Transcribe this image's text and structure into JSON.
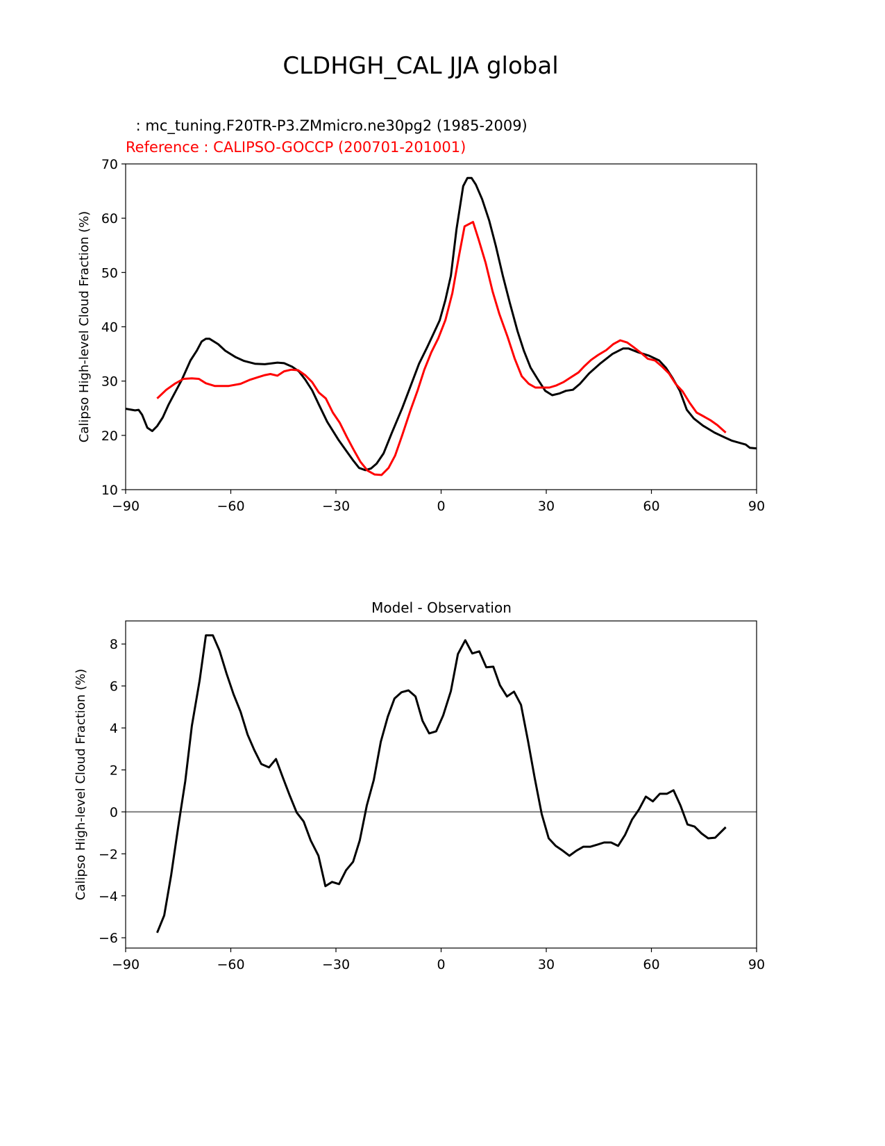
{
  "title": "CLDHGH_CAL JJA global",
  "colors": {
    "model": "#000000",
    "reference": "#ff0000",
    "zero_line": "#808080"
  },
  "chart_data": [
    {
      "type": "line",
      "test_label": " : mc_tuning.F20TR-P3.ZMmicro.ne30pg2 (1985-2009)",
      "ref_label": "Reference : CALIPSO-GOCCP (200701-201001)",
      "xlabel": "",
      "ylabel": "Calipso High-level Cloud Fraction (%)",
      "xlim": [
        -90,
        90
      ],
      "ylim": [
        10,
        70
      ],
      "xticks": [
        -90,
        -60,
        -30,
        0,
        30,
        60,
        90
      ],
      "xtick_labels": [
        "−90",
        "−60",
        "−30",
        "0",
        "30",
        "60",
        "90"
      ],
      "yticks": [
        10,
        20,
        30,
        40,
        50,
        60,
        70
      ],
      "ytick_labels": [
        "10",
        "20",
        "30",
        "40",
        "50",
        "60",
        "70"
      ],
      "series": [
        {
          "name": "model",
          "color": "#000000",
          "x": [
            -90,
            -87.3,
            -86.3,
            -85.3,
            -83.8,
            -82.4,
            -81,
            -79.4,
            -77.8,
            -76,
            -74,
            -71.5,
            -69.7,
            -68.3,
            -67.1,
            -66.1,
            -63.6,
            -61.6,
            -58.6,
            -56.2,
            -53.1,
            -50.3,
            -46.7,
            -44.8,
            -42.4,
            -40.6,
            -38.8,
            -36.8,
            -34.9,
            -32.5,
            -29.3,
            -26.9,
            -25,
            -23.4,
            -21.6,
            -20,
            -18.4,
            -16.4,
            -14.1,
            -11.1,
            -8.7,
            -6.3,
            -4,
            -2.2,
            -0.4,
            1.2,
            2.8,
            4.4,
            6.3,
            7.5,
            8.7,
            9.9,
            11.7,
            13.7,
            15.6,
            17.6,
            19.6,
            21.8,
            23.6,
            25.5,
            27.5,
            29.7,
            31.7,
            33.7,
            35.6,
            37.6,
            39.6,
            42.2,
            45.5,
            48.9,
            51.9,
            53.5,
            56.2,
            59.2,
            62.2,
            64.2,
            66.1,
            68.1,
            70.1,
            72.1,
            74.7,
            78,
            81,
            83,
            86.9,
            88.1,
            90
          ],
          "y": [
            24.9,
            24.6,
            24.7,
            23.8,
            21.4,
            20.8,
            21.7,
            23.3,
            25.6,
            27.8,
            30.2,
            33.8,
            35.6,
            37.3,
            37.8,
            37.8,
            36.8,
            35.6,
            34.4,
            33.7,
            33.2,
            33.1,
            33.4,
            33.3,
            32.6,
            31.8,
            30.3,
            28.3,
            25.7,
            22.5,
            19.2,
            17,
            15.3,
            14,
            13.6,
            13.9,
            14.8,
            16.7,
            20.4,
            25,
            29.1,
            33.2,
            36.2,
            38.7,
            41.2,
            44.9,
            49.4,
            58,
            65.9,
            67.4,
            67.4,
            66.2,
            63.5,
            59.6,
            54.9,
            49.4,
            44.4,
            39.2,
            35.6,
            32.5,
            30.4,
            28.2,
            27.4,
            27.7,
            28.2,
            28.4,
            29.5,
            31.4,
            33.3,
            35,
            36,
            36,
            35.3,
            34.7,
            33.8,
            32.4,
            30.5,
            28.2,
            24.7,
            23.1,
            21.8,
            20.5,
            19.6,
            19,
            18.3,
            17.7,
            17.6
          ]
        },
        {
          "name": "reference",
          "color": "#ff0000",
          "x": [
            -81,
            -78.4,
            -76,
            -73.5,
            -71.1,
            -69.1,
            -67.1,
            -64.6,
            -60.6,
            -57.2,
            -54.7,
            -52.3,
            -50.3,
            -48.7,
            -46.7,
            -44.8,
            -42.8,
            -40.8,
            -38.8,
            -36.8,
            -34.9,
            -32.9,
            -30.9,
            -28.9,
            -26.9,
            -25,
            -23,
            -21,
            -19,
            -17,
            -15,
            -13.1,
            -11.1,
            -8.7,
            -6.7,
            -4.8,
            -2.8,
            -0.8,
            1.2,
            3.2,
            5.1,
            6.7,
            9.1,
            10.7,
            12.7,
            14.7,
            16.6,
            19,
            21,
            23,
            25,
            26.9,
            28.9,
            30.9,
            32.9,
            34.9,
            36.8,
            39.2,
            40.8,
            42.8,
            44.8,
            47.1,
            49.1,
            51.1,
            53.1,
            55,
            57,
            59,
            61,
            63,
            65,
            66.9,
            68.9,
            70.9,
            72.9,
            74.9,
            76.8,
            78.8,
            81.2
          ],
          "y": [
            26.8,
            28.4,
            29.5,
            30.4,
            30.5,
            30.4,
            29.6,
            29.1,
            29.1,
            29.5,
            30.2,
            30.7,
            31.1,
            31.3,
            31,
            31.8,
            32.1,
            32,
            31.1,
            29.8,
            27.9,
            26.8,
            24.2,
            22.3,
            19.7,
            17.4,
            15.1,
            13.5,
            12.8,
            12.7,
            14,
            16.3,
            20,
            24.7,
            28.3,
            32.1,
            35.3,
            37.9,
            41.2,
            46.2,
            53.1,
            58.5,
            59.3,
            56.1,
            51.8,
            46.5,
            42.4,
            38.1,
            34.1,
            30.9,
            29.5,
            28.8,
            28.8,
            28.8,
            29.2,
            29.8,
            30.6,
            31.6,
            32.7,
            33.9,
            34.8,
            35.7,
            36.8,
            37.5,
            37.1,
            36.2,
            35.2,
            34.1,
            33.8,
            32.7,
            31.4,
            29.5,
            28.1,
            26,
            24.2,
            23.5,
            22.8,
            21.9,
            20.5
          ]
        }
      ]
    },
    {
      "type": "line",
      "title": "Model - Observation",
      "xlabel": "",
      "ylabel": "Calipso High-level Cloud Fraction (%)",
      "xlim": [
        -90,
        90
      ],
      "ylim": [
        -6.49,
        9.1
      ],
      "xticks": [
        -90,
        -60,
        -30,
        0,
        30,
        60,
        90
      ],
      "xtick_labels": [
        "−90",
        "−60",
        "−30",
        "0",
        "30",
        "60",
        "90"
      ],
      "yticks": [
        -6,
        -4,
        -2,
        0,
        2,
        4,
        6,
        8
      ],
      "ytick_labels": [
        "−6",
        "−4",
        "−2",
        "0",
        "2",
        "4",
        "6",
        "8"
      ],
      "hline": 0,
      "series": [
        {
          "name": "difference",
          "color": "#000000",
          "x": [
            -81,
            -79,
            -77,
            -75,
            -73,
            -71.1,
            -68.9,
            -67.1,
            -65.1,
            -63.2,
            -61.2,
            -59.2,
            -57.2,
            -55.2,
            -53.3,
            -51.3,
            -49.1,
            -47.1,
            -45.1,
            -43.2,
            -41.2,
            -39.2,
            -37.2,
            -35,
            -33,
            -31.1,
            -29.1,
            -27.1,
            -25.1,
            -23.2,
            -21.2,
            -19.2,
            -17.2,
            -15.2,
            -13.3,
            -11.3,
            -9.3,
            -7.3,
            -5.3,
            -3.4,
            -1.4,
            0.6,
            2.8,
            4.8,
            6.9,
            8.9,
            10.9,
            12.9,
            14.9,
            16.8,
            18.8,
            20.8,
            22.8,
            24.8,
            26.7,
            28.7,
            30.7,
            32.7,
            34.7,
            36.6,
            38.6,
            40.6,
            42.6,
            44.6,
            46.5,
            48.5,
            50.5,
            52.5,
            54.5,
            56.4,
            58.4,
            60.4,
            62.4,
            64.4,
            66.3,
            68.3,
            70.3,
            72.3,
            74.3,
            76.2,
            78.2,
            81.2
          ],
          "y": [
            -5.76,
            -4.93,
            -3.01,
            -0.7,
            1.46,
            4.1,
            6.26,
            8.41,
            8.41,
            7.68,
            6.59,
            5.6,
            4.77,
            3.68,
            2.95,
            2.28,
            2.12,
            2.52,
            1.62,
            0.79,
            -0.03,
            -0.46,
            -1.36,
            -2.09,
            -3.54,
            -3.34,
            -3.44,
            -2.78,
            -2.38,
            -1.36,
            0.3,
            1.52,
            3.34,
            4.54,
            5.4,
            5.7,
            5.79,
            5.5,
            4.34,
            3.74,
            3.84,
            4.6,
            5.76,
            7.52,
            8.18,
            7.55,
            7.65,
            6.89,
            6.92,
            6.03,
            5.5,
            5.73,
            5.1,
            3.38,
            1.62,
            -0.1,
            -1.26,
            -1.62,
            -1.85,
            -2.09,
            -1.85,
            -1.66,
            -1.66,
            -1.56,
            -1.46,
            -1.46,
            -1.62,
            -1.09,
            -0.36,
            0.1,
            0.73,
            0.5,
            0.86,
            0.86,
            1.03,
            0.3,
            -0.6,
            -0.7,
            -1.03,
            -1.26,
            -1.23,
            -0.73
          ]
        }
      ]
    }
  ]
}
